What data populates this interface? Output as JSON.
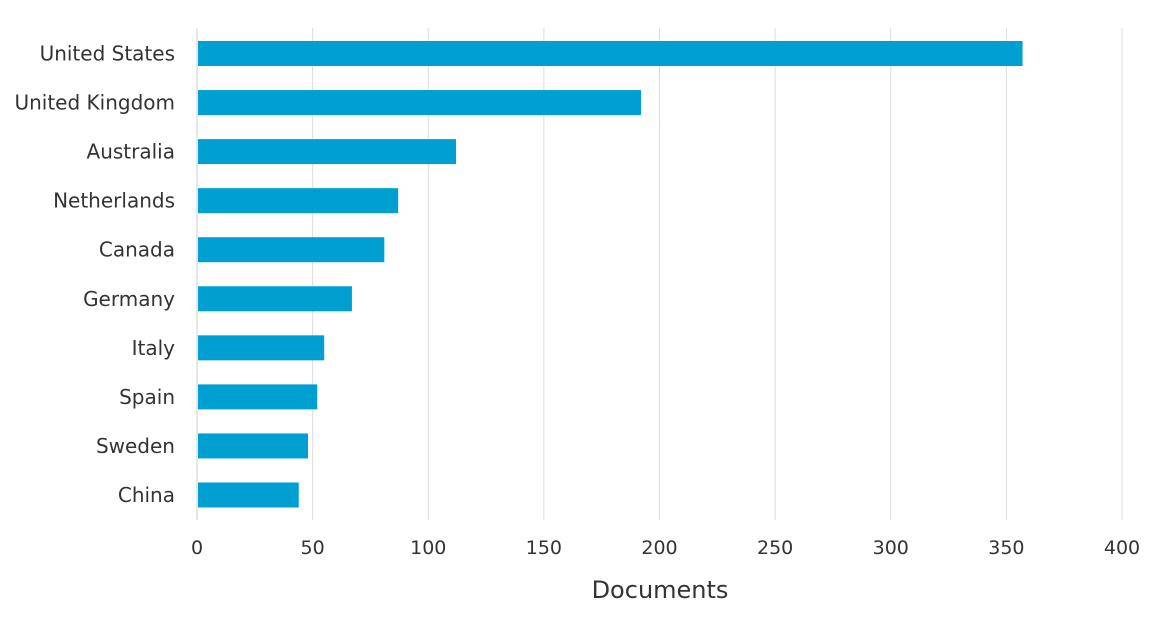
{
  "chart_data": {
    "type": "bar",
    "orientation": "horizontal",
    "categories": [
      "United States",
      "United Kingdom",
      "Australia",
      "Netherlands",
      "Canada",
      "Germany",
      "Italy",
      "Spain",
      "Sweden",
      "China"
    ],
    "values": [
      357,
      192,
      112,
      87,
      81,
      67,
      55,
      52,
      48,
      44
    ],
    "xlabel": "Documents",
    "ylabel": "",
    "xlim": [
      0,
      400
    ],
    "xticks": [
      0,
      50,
      100,
      150,
      200,
      250,
      300,
      350,
      400
    ],
    "grid": "vertical",
    "bar_color": "#009fd1",
    "legend": "none"
  }
}
